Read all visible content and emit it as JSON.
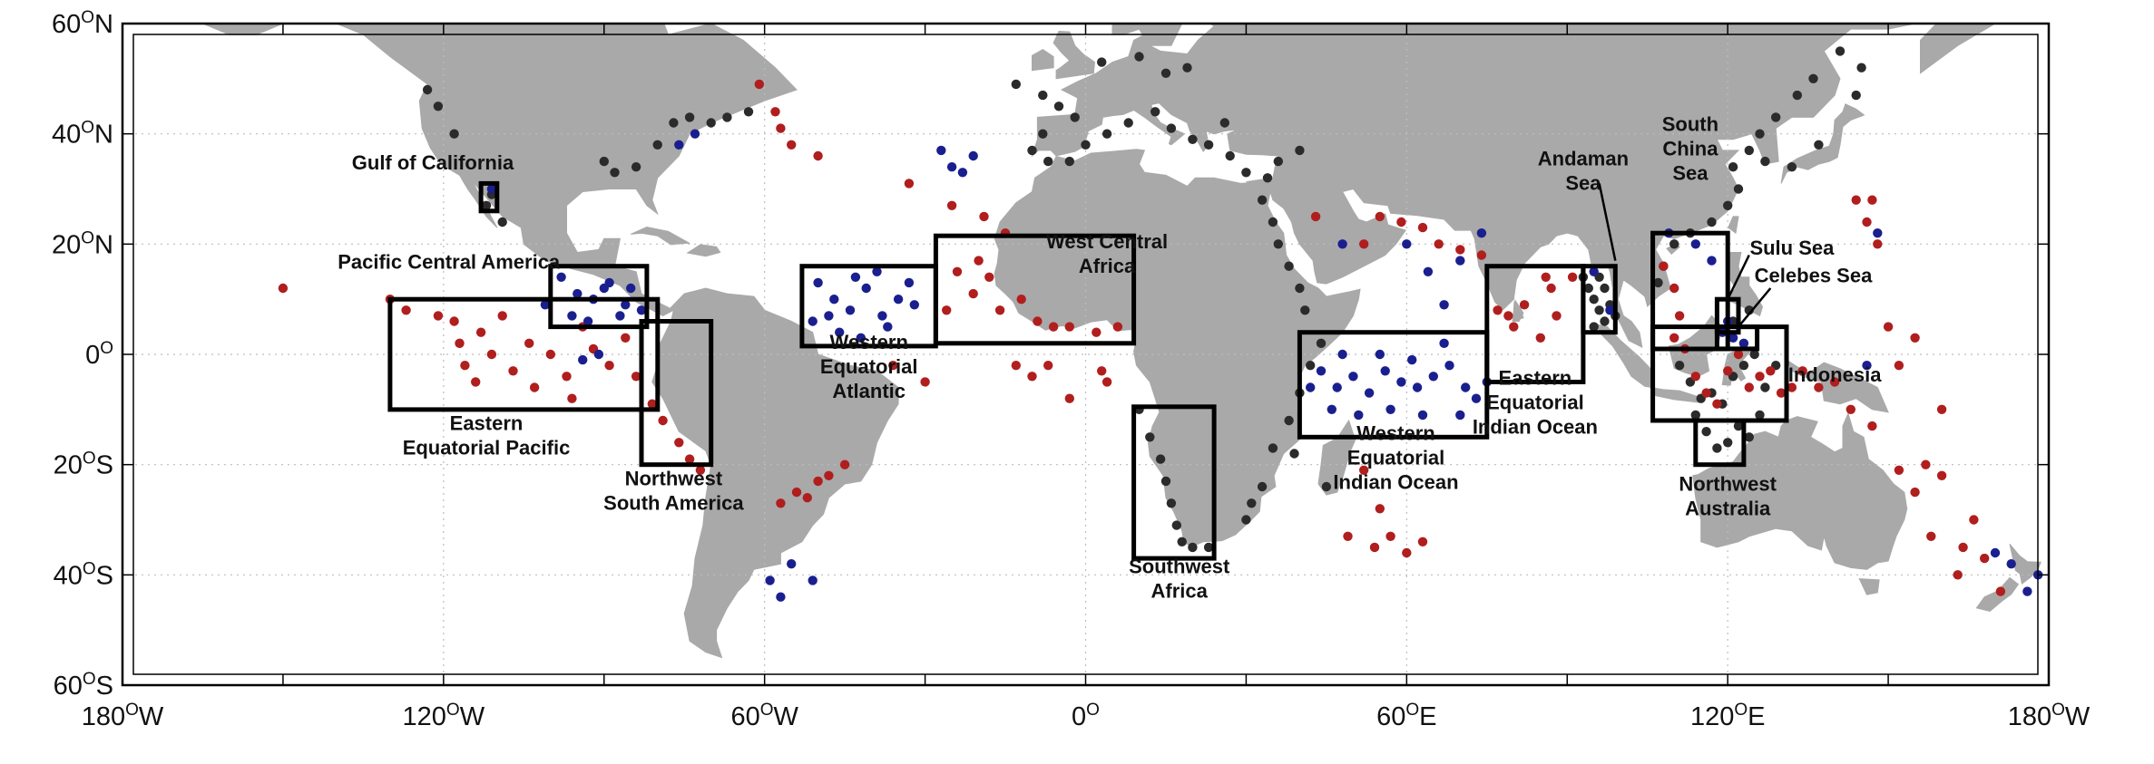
{
  "axes": {
    "lon_labels": [
      {
        "deg": "180",
        "hemi": "W",
        "lon": -180
      },
      {
        "deg": "120",
        "hemi": "W",
        "lon": -120
      },
      {
        "deg": "60",
        "hemi": "W",
        "lon": -60
      },
      {
        "deg": "0",
        "hemi": "",
        "lon": 0
      },
      {
        "deg": "60",
        "hemi": "E",
        "lon": 60
      },
      {
        "deg": "120",
        "hemi": "E",
        "lon": 120
      },
      {
        "deg": "180",
        "hemi": "W",
        "lon": 180
      }
    ],
    "lat_labels": [
      {
        "deg": "60",
        "hemi": "N",
        "lat": 60
      },
      {
        "deg": "40",
        "hemi": "N",
        "lat": 40
      },
      {
        "deg": "20",
        "hemi": "N",
        "lat": 20
      },
      {
        "deg": "0",
        "hemi": "",
        "lat": 0
      },
      {
        "deg": "20",
        "hemi": "S",
        "lat": -20
      },
      {
        "deg": "40",
        "hemi": "S",
        "lat": -40
      },
      {
        "deg": "60",
        "hemi": "S",
        "lat": -60
      }
    ],
    "lon_range": [
      -180,
      180
    ],
    "lat_range": [
      -60,
      60
    ],
    "grid": "dotted"
  },
  "colors": {
    "land": "#a9a9a9",
    "ocean": "#ffffff",
    "red_sites": "#b01e1e",
    "blue_sites": "#1a1f8f",
    "black_sites": "#2b2b2b",
    "boxes": "#000000"
  },
  "regions": [
    {
      "name": "Gulf of California",
      "lon": [
        -113,
        -110
      ],
      "lat": [
        26,
        31
      ],
      "label_lines": [
        "Gulf of California"
      ],
      "label_lon": -122,
      "label_lat": 34.5
    },
    {
      "name": "Pacific Central America",
      "lon": [
        -100,
        -82
      ],
      "lat": [
        5,
        16
      ],
      "label_lines": [
        "Pacific Central America"
      ],
      "label_lon": -119,
      "label_lat": 16.5
    },
    {
      "name": "Eastern Equatorial Pacific",
      "lon": [
        -130,
        -80
      ],
      "lat": [
        -10,
        10
      ],
      "label_lines": [
        "Eastern",
        "Equatorial Pacific"
      ],
      "label_lon": -112,
      "label_lat": -15
    },
    {
      "name": "Northwest South America",
      "lon": [
        -83,
        -70
      ],
      "lat": [
        -20,
        6
      ],
      "label_lines": [
        "Northwest",
        "South America"
      ],
      "label_lon": -77,
      "label_lat": -25
    },
    {
      "name": "Western Equatorial Atlantic",
      "lon": [
        -53,
        -28
      ],
      "lat": [
        1.5,
        16
      ],
      "label_lines": [
        "Western",
        "Equatorial",
        "Atlantic"
      ],
      "label_lon": -40.5,
      "label_lat": -2.5
    },
    {
      "name": "West Central Africa",
      "lon": [
        -28,
        9
      ],
      "lat": [
        2,
        21.5
      ],
      "label_lines": [
        "West Central",
        "Africa"
      ],
      "label_lon": 4,
      "label_lat": 18
    },
    {
      "name": "Southwest Africa",
      "lon": [
        9,
        24
      ],
      "lat": [
        -37,
        -9.5
      ],
      "label_lines": [
        "Southwest",
        "Africa"
      ],
      "label_lon": 17.5,
      "label_lat": -41
    },
    {
      "name": "Western Equatorial Indian Ocean",
      "lon": [
        40,
        75
      ],
      "lat": [
        -15,
        4
      ],
      "label_lines": [
        "Western",
        "Equatorial",
        "Indian Ocean"
      ],
      "label_lon": 58,
      "label_lat": -19
    },
    {
      "name": "Eastern Equatorial Indian Ocean",
      "lon": [
        75,
        93
      ],
      "lat": [
        -5,
        16
      ],
      "label_lines": [
        "Eastern",
        "Equatorial",
        "Indian Ocean"
      ],
      "label_lon": 84,
      "label_lat": -9
    },
    {
      "name": "Andaman Sea",
      "lon": [
        93,
        99
      ],
      "lat": [
        4,
        16
      ],
      "label_lines": [
        "Andaman",
        "Sea"
      ],
      "label_lon": 93,
      "label_lat": 33
    },
    {
      "name": "South China Sea",
      "lon": [
        106,
        120
      ],
      "lat": [
        1,
        22
      ],
      "label_lines": [
        "South",
        "China",
        "Sea"
      ],
      "label_lon": 113,
      "label_lat": 37
    },
    {
      "name": "Sulu Sea",
      "lon": [
        118,
        122
      ],
      "lat": [
        4,
        10
      ],
      "label_lines": [
        "Sulu Sea"
      ],
      "label_lon": 132,
      "label_lat": 19
    },
    {
      "name": "Celebes Sea",
      "lon": [
        118,
        125.5
      ],
      "lat": [
        1,
        5
      ],
      "label_lines": [
        "Celebes Sea"
      ],
      "label_lon": 136,
      "label_lat": 14
    },
    {
      "name": "Indonesia",
      "lon": [
        106,
        131
      ],
      "lat": [
        -12,
        5
      ],
      "label_lines": [
        "Indonesia"
      ],
      "label_lon": 140,
      "label_lat": -4
    },
    {
      "name": "Northwest Australia",
      "lon": [
        114,
        123
      ],
      "lat": [
        -20,
        -12
      ],
      "label_lines": [
        "Northwest",
        "Australia"
      ],
      "label_lon": 120,
      "label_lat": -26
    }
  ],
  "markers": {
    "red": [
      [
        -150,
        12
      ],
      [
        -130,
        10
      ],
      [
        -127,
        8
      ],
      [
        -118,
        6
      ],
      [
        -117,
        2
      ],
      [
        -116,
        -2
      ],
      [
        -113,
        4
      ],
      [
        -111,
        0
      ],
      [
        -107,
        -3
      ],
      [
        -104,
        2
      ],
      [
        -100,
        0
      ],
      [
        -97,
        -4
      ],
      [
        -94,
        5
      ],
      [
        -92,
        1
      ],
      [
        -89,
        -2
      ],
      [
        -86,
        3
      ],
      [
        -84,
        -4
      ],
      [
        -81,
        -9
      ],
      [
        -79,
        -12
      ],
      [
        -76,
        -16
      ],
      [
        -74,
        -19
      ],
      [
        -72,
        -21
      ],
      [
        -121,
        7
      ],
      [
        -114,
        -5
      ],
      [
        -109,
        7
      ],
      [
        -103,
        -6
      ],
      [
        -96,
        -8
      ],
      [
        -57,
        -27
      ],
      [
        -54,
        -25
      ],
      [
        -50,
        -23
      ],
      [
        -45,
        -20
      ],
      [
        -52,
        -26
      ],
      [
        -48,
        -22
      ],
      [
        -61,
        49
      ],
      [
        -58,
        44
      ],
      [
        -55,
        38
      ],
      [
        -50,
        36
      ],
      [
        -57,
        41
      ],
      [
        -33,
        31
      ],
      [
        -25,
        27
      ],
      [
        -19,
        25
      ],
      [
        -15,
        22
      ],
      [
        -24,
        15
      ],
      [
        -21,
        11
      ],
      [
        -18,
        14
      ],
      [
        -16,
        8
      ],
      [
        -12,
        10
      ],
      [
        -9,
        6
      ],
      [
        -6,
        5
      ],
      [
        -3,
        5
      ],
      [
        2,
        4
      ],
      [
        6,
        5
      ],
      [
        -13,
        -2
      ],
      [
        -10,
        -4
      ],
      [
        -7,
        -2
      ],
      [
        -3,
        -8
      ],
      [
        3,
        -3
      ],
      [
        4,
        -5
      ],
      [
        -20,
        17
      ],
      [
        -26,
        8
      ],
      [
        -36,
        -2
      ],
      [
        -30,
        -5
      ],
      [
        52,
        20
      ],
      [
        55,
        25
      ],
      [
        59,
        24
      ],
      [
        63,
        23
      ],
      [
        66,
        20
      ],
      [
        70,
        19
      ],
      [
        74,
        18
      ],
      [
        43,
        25
      ],
      [
        49,
        -33
      ],
      [
        54,
        -35
      ],
      [
        57,
        -33
      ],
      [
        60,
        -36
      ],
      [
        63,
        -34
      ],
      [
        52,
        -21
      ],
      [
        55,
        -28
      ],
      [
        77,
        8
      ],
      [
        80,
        5
      ],
      [
        82,
        9
      ],
      [
        85,
        3
      ],
      [
        87,
        12
      ],
      [
        88,
        7
      ],
      [
        91,
        14
      ],
      [
        86,
        14
      ],
      [
        79,
        7
      ],
      [
        108,
        16
      ],
      [
        110,
        12
      ],
      [
        111,
        7
      ],
      [
        110,
        3
      ],
      [
        112,
        1
      ],
      [
        114,
        -4
      ],
      [
        116,
        -7
      ],
      [
        118,
        -9
      ],
      [
        120,
        -3
      ],
      [
        122,
        0
      ],
      [
        124,
        -6
      ],
      [
        126,
        -4
      ],
      [
        128,
        -3
      ],
      [
        130,
        -7
      ],
      [
        132,
        -6
      ],
      [
        134,
        -3
      ],
      [
        137,
        -6
      ],
      [
        140,
        -5
      ],
      [
        143,
        -10
      ],
      [
        147,
        -13
      ],
      [
        152,
        -21
      ],
      [
        155,
        -25
      ],
      [
        158,
        -33
      ],
      [
        164,
        -35
      ],
      [
        168,
        -37
      ],
      [
        171,
        -43
      ],
      [
        163,
        -40
      ],
      [
        166,
        -30
      ],
      [
        160,
        -22
      ],
      [
        157,
        -20
      ],
      [
        148,
        20
      ],
      [
        144,
        28
      ],
      [
        147,
        28
      ],
      [
        150,
        5
      ],
      [
        155,
        3
      ],
      [
        152,
        -2
      ],
      [
        146,
        24
      ],
      [
        160,
        -10
      ]
    ],
    "blue": [
      [
        -98,
        14
      ],
      [
        -95,
        11
      ],
      [
        -92,
        10
      ],
      [
        -89,
        13
      ],
      [
        -86,
        9
      ],
      [
        -83,
        8
      ],
      [
        -96,
        7
      ],
      [
        -93,
        6
      ],
      [
        -90,
        12
      ],
      [
        -87,
        7
      ],
      [
        -101,
        9
      ],
      [
        -85,
        12
      ],
      [
        -94,
        -1
      ],
      [
        -91,
        0
      ],
      [
        -111,
        30
      ],
      [
        -76,
        38
      ],
      [
        -73,
        40
      ],
      [
        -50,
        13
      ],
      [
        -47,
        10
      ],
      [
        -44,
        8
      ],
      [
        -41,
        12
      ],
      [
        -38,
        7
      ],
      [
        -35,
        10
      ],
      [
        -32,
        9
      ],
      [
        -46,
        4
      ],
      [
        -42,
        3
      ],
      [
        -37,
        5
      ],
      [
        -48,
        7
      ],
      [
        -43,
        14
      ],
      [
        -39,
        15
      ],
      [
        -33,
        13
      ],
      [
        -51,
        6
      ],
      [
        -27,
        37
      ],
      [
        -25,
        34
      ],
      [
        -21,
        36
      ],
      [
        -23,
        33
      ],
      [
        -59,
        -41
      ],
      [
        -57,
        -44
      ],
      [
        -55,
        -38
      ],
      [
        -51,
        -41
      ],
      [
        44,
        -3
      ],
      [
        47,
        -6
      ],
      [
        50,
        -4
      ],
      [
        53,
        -7
      ],
      [
        56,
        -3
      ],
      [
        59,
        -5
      ],
      [
        62,
        -6
      ],
      [
        65,
        -4
      ],
      [
        68,
        -2
      ],
      [
        71,
        -6
      ],
      [
        46,
        -10
      ],
      [
        51,
        -11
      ],
      [
        57,
        -10
      ],
      [
        63,
        -11
      ],
      [
        70,
        -11
      ],
      [
        48,
        0
      ],
      [
        55,
        0
      ],
      [
        61,
        -1
      ],
      [
        67,
        2
      ],
      [
        73,
        -8
      ],
      [
        42,
        -6
      ],
      [
        75,
        -5
      ],
      [
        60,
        20
      ],
      [
        64,
        15
      ],
      [
        70,
        17
      ],
      [
        74,
        22
      ],
      [
        67,
        9
      ],
      [
        48,
        20
      ],
      [
        98,
        8
      ],
      [
        95,
        15
      ],
      [
        109,
        22
      ],
      [
        114,
        20
      ],
      [
        117,
        17
      ],
      [
        119,
        4
      ],
      [
        121,
        3
      ],
      [
        123,
        2
      ],
      [
        120,
        6
      ],
      [
        146,
        -2
      ],
      [
        148,
        22
      ],
      [
        173,
        -38
      ],
      [
        176,
        -43
      ],
      [
        178,
        -40
      ],
      [
        170,
        -36
      ]
    ],
    "black": [
      [
        -123,
        48
      ],
      [
        -121,
        45
      ],
      [
        -118,
        40
      ],
      [
        -112,
        27
      ],
      [
        -109,
        24
      ],
      [
        -111,
        29
      ],
      [
        -90,
        35
      ],
      [
        -88,
        33
      ],
      [
        -84,
        34
      ],
      [
        -80,
        38
      ],
      [
        -77,
        42
      ],
      [
        -74,
        43
      ],
      [
        -70,
        42
      ],
      [
        -67,
        43
      ],
      [
        -63,
        44
      ],
      [
        -13,
        49
      ],
      [
        -8,
        47
      ],
      [
        -5,
        45
      ],
      [
        -2,
        43
      ],
      [
        -8,
        40
      ],
      [
        -10,
        37
      ],
      [
        -7,
        35
      ],
      [
        -3,
        35
      ],
      [
        0,
        38
      ],
      [
        4,
        40
      ],
      [
        8,
        42
      ],
      [
        13,
        44
      ],
      [
        16,
        41
      ],
      [
        20,
        39
      ],
      [
        23,
        38
      ],
      [
        27,
        36
      ],
      [
        30,
        33
      ],
      [
        34,
        32
      ],
      [
        36,
        35
      ],
      [
        40,
        37
      ],
      [
        26,
        42
      ],
      [
        15,
        51
      ],
      [
        19,
        52
      ],
      [
        10,
        54
      ],
      [
        3,
        53
      ],
      [
        10,
        -10
      ],
      [
        12,
        -15
      ],
      [
        14,
        -19
      ],
      [
        15,
        -23
      ],
      [
        16,
        -27
      ],
      [
        17,
        -31
      ],
      [
        18,
        -34
      ],
      [
        20,
        -35
      ],
      [
        23,
        -35
      ],
      [
        33,
        28
      ],
      [
        35,
        24
      ],
      [
        36,
        20
      ],
      [
        38,
        16
      ],
      [
        40,
        12
      ],
      [
        41,
        8
      ],
      [
        44,
        2
      ],
      [
        42,
        -2
      ],
      [
        40,
        -7
      ],
      [
        38,
        -12
      ],
      [
        35,
        -17
      ],
      [
        33,
        -24
      ],
      [
        31,
        -27
      ],
      [
        30,
        -30
      ],
      [
        39,
        -18
      ],
      [
        45,
        -24
      ],
      [
        93,
        14
      ],
      [
        94,
        12
      ],
      [
        95,
        10
      ],
      [
        96,
        8
      ],
      [
        97,
        6
      ],
      [
        98,
        9
      ],
      [
        97,
        12
      ],
      [
        96,
        14
      ],
      [
        99,
        7
      ],
      [
        95,
        5
      ],
      [
        108,
        16
      ],
      [
        107,
        13
      ],
      [
        110,
        20
      ],
      [
        113,
        22
      ],
      [
        117,
        24
      ],
      [
        120,
        27
      ],
      [
        122,
        30
      ],
      [
        121,
        34
      ],
      [
        124,
        37
      ],
      [
        126,
        40
      ],
      [
        129,
        43
      ],
      [
        133,
        47
      ],
      [
        136,
        50
      ],
      [
        141,
        55
      ],
      [
        144,
        47
      ],
      [
        145,
        52
      ],
      [
        137,
        38
      ],
      [
        132,
        34
      ],
      [
        127,
        35
      ],
      [
        111,
        -2
      ],
      [
        113,
        -5
      ],
      [
        115,
        -8
      ],
      [
        117,
        -7
      ],
      [
        119,
        -9
      ],
      [
        121,
        -4
      ],
      [
        123,
        -2
      ],
      [
        125,
        0
      ],
      [
        127,
        -6
      ],
      [
        129,
        -2
      ],
      [
        124,
        8
      ],
      [
        121,
        6
      ],
      [
        116,
        -14
      ],
      [
        118,
        -17
      ],
      [
        120,
        -16
      ],
      [
        122,
        -13
      ],
      [
        114,
        -11
      ],
      [
        124,
        -15
      ],
      [
        126,
        -11
      ]
    ]
  }
}
